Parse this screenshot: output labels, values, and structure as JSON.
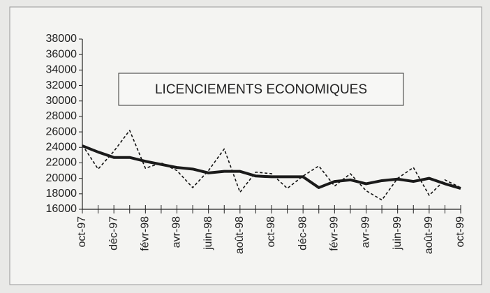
{
  "chart_data": {
    "type": "line",
    "title": "LICENCIEMENTS ECONOMIQUES",
    "categories": [
      "oct-97",
      null,
      "déc-97",
      null,
      "févr-98",
      null,
      "avr-98",
      null,
      "juin-98",
      null,
      "août-98",
      null,
      "oct-98",
      null,
      "déc-98",
      null,
      "févr-99",
      null,
      "avr-99",
      null,
      "juin-99",
      null,
      "août-99",
      null,
      "oct-99"
    ],
    "series": [
      {
        "color": "#111111",
        "dash": true,
        "values": [
          24300,
          21200,
          23500,
          26200,
          21300,
          22000,
          21000,
          18800,
          21000,
          23800,
          18200,
          20800,
          20600,
          18700,
          20300,
          21600,
          19000,
          20600,
          18400,
          17200,
          20000,
          21400,
          17800,
          19800,
          18800
        ]
      },
      {
        "color": "#1a1a1a",
        "dash": false,
        "values": [
          24200,
          23400,
          22700,
          22700,
          22200,
          21800,
          21400,
          21200,
          20700,
          20900,
          20900,
          20300,
          20200,
          20200,
          20200,
          18800,
          19600,
          19800,
          19300,
          19700,
          19900,
          19600,
          20000,
          19300,
          18700
        ]
      }
    ],
    "ylim": [
      16000,
      38000
    ],
    "yticks": [
      16000,
      18000,
      20000,
      22000,
      24000,
      26000,
      28000,
      30000,
      32000,
      34000,
      36000,
      38000
    ]
  }
}
